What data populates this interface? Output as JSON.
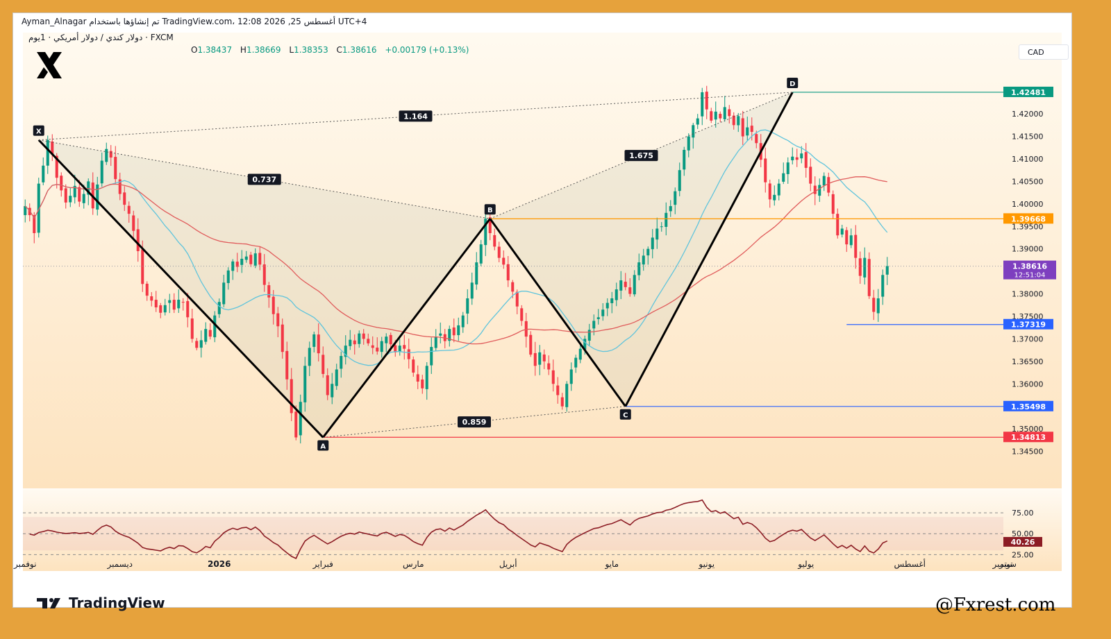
{
  "header": {
    "author_line": "Ayman_Alnagar تم إنشاؤها باستخدام TradingView.com، 12:08 2026 ,25 أغسطس UTC+4",
    "symbol": "دولار كندي / دولار أمريكي · 1يوم · FXCM",
    "ohlc": {
      "open_label": "O",
      "open": "1.38437",
      "high_label": "H",
      "high": "1.38669",
      "low_label": "L",
      "low": "1.38353",
      "close_label": "C",
      "close": "1.38616",
      "change": "+0.00179 (+0.13%)"
    },
    "currency": "CAD"
  },
  "logo_icon": "x-brand-logo",
  "branding": {
    "tradingview": "TradingView",
    "watermark": "@Fxrest.com"
  },
  "colors": {
    "up": "#089981",
    "down": "#f23645",
    "ma_fast": "#5fc4dc",
    "ma_slow": "#e05a5a",
    "pattern": "#000000",
    "level_d": "#089981",
    "level_b": "#ff9800",
    "level_blue": "#2962ff",
    "level_a": "#f23645",
    "current": "#7e3fbf",
    "rsi": "#8c1c24"
  },
  "chart_data": [
    {
      "type": "candlestick",
      "instrument": "دولار كندي / دولار أمريكي",
      "timeframe": "1يوم",
      "x_ticks": [
        "نوفمبر",
        "ديسمبر",
        "2026",
        "فبراير",
        "مارس",
        "أبريل",
        "مايو",
        "يونيو",
        "يوليو",
        "أغسطس",
        "سبتمبر",
        "توبر"
      ],
      "y_ticks": [
        "1.42000",
        "1.41500",
        "1.41000",
        "1.40500",
        "1.40000",
        "1.39500",
        "1.39000",
        "1.38000",
        "1.37500",
        "1.37000",
        "1.36500",
        "1.36000",
        "1.35000",
        "1.34500"
      ],
      "ylim": [
        1.342,
        1.4285
      ],
      "harmonic_pattern": {
        "points": [
          {
            "label": "X",
            "date": "2025-11-07",
            "price": 1.4142
          },
          {
            "label": "A",
            "date": "2026-02-03",
            "price": 1.3481
          },
          {
            "label": "B",
            "date": "2026-03-27",
            "price": 1.3967
          },
          {
            "label": "C",
            "date": "2026-05-08",
            "price": 1.355
          },
          {
            "label": "D",
            "date": "2026-06-29",
            "price": 1.4248
          }
        ],
        "ratios": [
          {
            "value": "1.164",
            "from": "X",
            "to": "D"
          },
          {
            "value": "0.737",
            "from": "X",
            "to": "B"
          },
          {
            "value": "1.675",
            "from": "B",
            "to": "D"
          },
          {
            "value": "0.859",
            "from": "A",
            "to": "C"
          }
        ]
      },
      "price_levels": [
        {
          "value": "1.42481",
          "color": "#089981"
        },
        {
          "value": "1.39668",
          "color": "#ff9800"
        },
        {
          "value": "1.37319",
          "color": "#2962ff"
        },
        {
          "value": "1.35498",
          "color": "#2962ff"
        },
        {
          "value": "1.34813",
          "color": "#f23645"
        }
      ],
      "current_price": {
        "value": "1.38616",
        "countdown": "12:51:04"
      },
      "closes": [
        1.3995,
        1.3975,
        1.3935,
        1.4045,
        1.4085,
        1.4142,
        1.411,
        1.4058,
        1.403,
        1.4003,
        1.4018,
        1.404,
        1.4005,
        1.4022,
        1.405,
        1.399,
        1.4043,
        1.4096,
        1.4122,
        1.4103,
        1.4055,
        1.4022,
        1.3998,
        1.3978,
        1.394,
        1.3895,
        1.3822,
        1.3796,
        1.3785,
        1.377,
        1.3758,
        1.3775,
        1.3786,
        1.3765,
        1.3787,
        1.3782,
        1.3748,
        1.37,
        1.368,
        1.3697,
        1.3722,
        1.3705,
        1.3752,
        1.3782,
        1.3825,
        1.3852,
        1.3872,
        1.386,
        1.3878,
        1.3883,
        1.3866,
        1.389,
        1.3865,
        1.382,
        1.3792,
        1.3755,
        1.3728,
        1.3671,
        1.361,
        1.3535,
        1.3481,
        1.356,
        1.364,
        1.368,
        1.371,
        1.3668,
        1.3622,
        1.3575,
        1.36,
        1.3632,
        1.3662,
        1.3685,
        1.3698,
        1.3688,
        1.3712,
        1.37,
        1.369,
        1.368,
        1.3672,
        1.3695,
        1.3705,
        1.3688,
        1.367,
        1.3685,
        1.3678,
        1.3655,
        1.3625,
        1.3605,
        1.359,
        1.364,
        1.3682,
        1.3705,
        1.3712,
        1.3695,
        1.3722,
        1.3708,
        1.373,
        1.3752,
        1.379,
        1.3825,
        1.387,
        1.391,
        1.3967,
        1.3935,
        1.3905,
        1.388,
        1.3865,
        1.383,
        1.3805,
        1.3772,
        1.374,
        1.3705,
        1.3665,
        1.364,
        1.367,
        1.365,
        1.3632,
        1.36,
        1.3575,
        1.355,
        1.36,
        1.3632,
        1.3658,
        1.3678,
        1.37,
        1.372,
        1.374,
        1.3748,
        1.3765,
        1.378,
        1.379,
        1.381,
        1.383,
        1.3815,
        1.38,
        1.3842,
        1.387,
        1.3885,
        1.39,
        1.3925,
        1.3945,
        1.395,
        1.398,
        1.3995,
        1.4028,
        1.4075,
        1.412,
        1.415,
        1.4175,
        1.419,
        1.4248,
        1.421,
        1.4185,
        1.4205,
        1.419,
        1.4215,
        1.4195,
        1.4175,
        1.4195,
        1.415,
        1.417,
        1.416,
        1.4135,
        1.4098,
        1.4048,
        1.401,
        1.402,
        1.4045,
        1.4068,
        1.4092,
        1.4105,
        1.4098,
        1.4112,
        1.408,
        1.4045,
        1.4022,
        1.4042,
        1.4062,
        1.4025,
        1.3978,
        1.393,
        1.3945,
        1.391,
        1.393,
        1.388,
        1.384,
        1.388,
        1.3795,
        1.376,
        1.379,
        1.3842,
        1.3862
      ],
      "overlays": [
        "moving-average-fast",
        "moving-average-slow"
      ]
    },
    {
      "type": "line",
      "name": "RSI",
      "y_ticks": [
        "75.00",
        "50.00",
        "25.00"
      ],
      "ylim": [
        12,
        95
      ],
      "current_value": "40.26",
      "band": [
        30,
        70
      ]
    }
  ]
}
